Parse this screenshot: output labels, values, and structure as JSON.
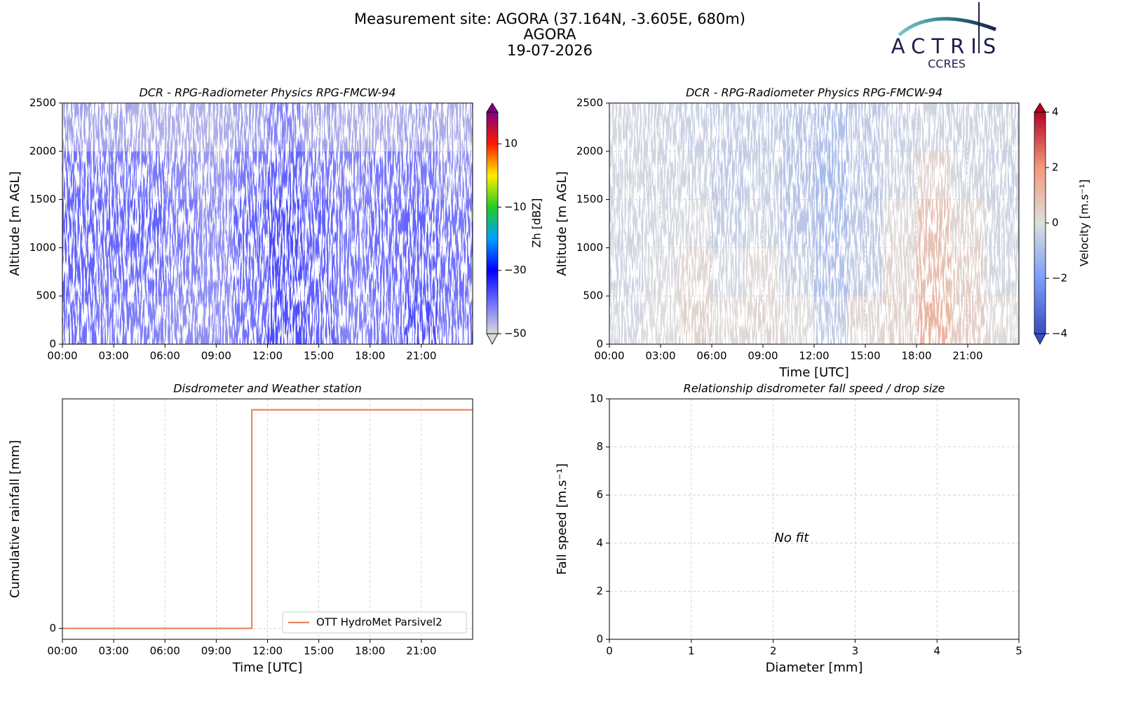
{
  "header": {
    "title": [
      "Measurement site: AGORA (37.164N, -3.605E, 680m)",
      "AGORA",
      "19-07-2026"
    ],
    "logo": {
      "name": "ACTRIS",
      "subtitle": "CCRES"
    }
  },
  "chart_data": [
    {
      "type": "heatmap",
      "title": "DCR - RPG-Radiometer Physics RPG-FMCW-94",
      "ylabel": "Altitude [m AGL]",
      "x": [
        0,
        2,
        4,
        6,
        8,
        10,
        12,
        14,
        16,
        18,
        20,
        22,
        24
      ],
      "y": [
        0,
        500,
        1000,
        1500,
        2000,
        2500
      ],
      "z": [
        [
          -40,
          -41,
          -42,
          -43,
          -43,
          -40,
          -37,
          -39,
          -42,
          -41,
          -37,
          -41
        ],
        [
          -39,
          -40,
          -40,
          -42,
          -43,
          -40,
          -37,
          -39,
          -41,
          -40,
          -39,
          -40
        ],
        [
          -39,
          -39,
          -39,
          -41,
          -43,
          -39,
          -37,
          -39,
          -41,
          -40,
          -39,
          -41
        ],
        [
          -40,
          -41,
          -41,
          -43,
          -44,
          -41,
          -39,
          -41,
          -42,
          -41,
          -41,
          -43
        ],
        [
          -45,
          -45,
          -46,
          -46,
          -46,
          -45,
          -42,
          -45,
          -46,
          -46,
          -45,
          -46
        ]
      ],
      "xlim": [
        0,
        24
      ],
      "ylim": [
        0,
        2500
      ],
      "xticks": [
        {
          "value": 0,
          "label": "00:00"
        },
        {
          "value": 3,
          "label": "03:00"
        },
        {
          "value": 6,
          "label": "06:00"
        },
        {
          "value": 9,
          "label": "09:00"
        },
        {
          "value": 12,
          "label": "12:00"
        },
        {
          "value": 15,
          "label": "15:00"
        },
        {
          "value": 18,
          "label": "18:00"
        },
        {
          "value": 21,
          "label": "21:00"
        }
      ],
      "yticks": [
        0,
        500,
        1000,
        1500,
        2000,
        2500
      ],
      "grid": true,
      "colorbar": {
        "label": "Zh [dBZ]",
        "clim": [
          -50,
          20
        ],
        "colormap": "zh",
        "ticks": [
          {
            "value": -50,
            "label": "−50"
          },
          {
            "value": -30,
            "label": "−30"
          },
          {
            "value": -10,
            "label": "−10"
          },
          10
        ]
      }
    },
    {
      "type": "heatmap",
      "title": "DCR - RPG-Radiometer Physics RPG-FMCW-94",
      "ylabel": "Altitude [m AGL]",
      "xlabel": "Time [UTC]",
      "x": [
        0,
        2,
        4,
        6,
        8,
        10,
        12,
        14,
        16,
        18,
        20,
        22,
        24
      ],
      "y": [
        0,
        500,
        1000,
        1500,
        2000,
        2500
      ],
      "z": [
        [
          -0.2,
          0,
          0.3,
          0.1,
          0.2,
          0.1,
          -0.6,
          0.2,
          0.3,
          1.2,
          0.5,
          0.1
        ],
        [
          -0.3,
          -0.1,
          0.2,
          -0.2,
          0.1,
          -0.4,
          -0.9,
          -0.5,
          0.2,
          0.9,
          0.4,
          -0.2
        ],
        [
          -0.3,
          -0.2,
          -0.1,
          -0.5,
          -0.3,
          -0.7,
          -1.0,
          -0.6,
          0.1,
          0.8,
          0.2,
          -0.3
        ],
        [
          -0.2,
          -0.3,
          -0.3,
          -0.6,
          -0.4,
          -0.8,
          -1.1,
          -0.7,
          -0.3,
          0.3,
          -0.2,
          -0.4
        ],
        [
          -0.2,
          -0.3,
          -0.4,
          -0.5,
          -0.5,
          -0.7,
          -0.9,
          -0.6,
          -0.4,
          -0.3,
          -0.3,
          -0.3
        ]
      ],
      "xlim": [
        0,
        24
      ],
      "ylim": [
        0,
        2500
      ],
      "xticks": [
        {
          "value": 0,
          "label": "00:00"
        },
        {
          "value": 3,
          "label": "03:00"
        },
        {
          "value": 6,
          "label": "06:00"
        },
        {
          "value": 9,
          "label": "09:00"
        },
        {
          "value": 12,
          "label": "12:00"
        },
        {
          "value": 15,
          "label": "15:00"
        },
        {
          "value": 18,
          "label": "18:00"
        },
        {
          "value": 21,
          "label": "21:00"
        }
      ],
      "yticks": [
        0,
        500,
        1000,
        1500,
        2000,
        2500
      ],
      "grid": true,
      "colorbar": {
        "label": "Velocity [m.s⁻¹]",
        "clim": [
          -4,
          4
        ],
        "colormap": "velocity",
        "ticks": [
          {
            "value": -4,
            "label": "−4"
          },
          {
            "value": -2,
            "label": "−2"
          },
          0,
          2,
          4
        ]
      }
    },
    {
      "type": "line",
      "title": "Disdrometer and Weather station",
      "ylabel": "Cumulative rainfall [mm]",
      "xlabel": "Time [UTC]",
      "series": [
        {
          "name": "OTT HydroMet Parsivel2",
          "color": "#ec875c",
          "x": [
            0,
            11.08,
            11.08,
            24
          ],
          "values": [
            0,
            0,
            1,
            1
          ]
        }
      ],
      "xlim": [
        0,
        24
      ],
      "ylim": [
        -0.05,
        1.05
      ],
      "xticks": [
        {
          "value": 0,
          "label": "00:00"
        },
        {
          "value": 3,
          "label": "03:00"
        },
        {
          "value": 6,
          "label": "06:00"
        },
        {
          "value": 9,
          "label": "09:00"
        },
        {
          "value": 12,
          "label": "12:00"
        },
        {
          "value": 15,
          "label": "15:00"
        },
        {
          "value": 18,
          "label": "18:00"
        },
        {
          "value": 21,
          "label": "21:00"
        }
      ],
      "yticks": [
        0
      ],
      "grid": true,
      "legend": "lower right"
    },
    {
      "type": "scatter",
      "title": "Relationship disdrometer fall speed / drop size",
      "ylabel": "Fall speed [m.s⁻¹]",
      "xlabel": "Diameter [mm]",
      "annotation": "No fit",
      "xlim": [
        0,
        5
      ],
      "ylim": [
        0,
        10
      ],
      "xticks": [
        0,
        1,
        2,
        3,
        4,
        5
      ],
      "yticks": [
        0,
        2,
        4,
        6,
        8,
        10
      ],
      "grid": true
    }
  ]
}
